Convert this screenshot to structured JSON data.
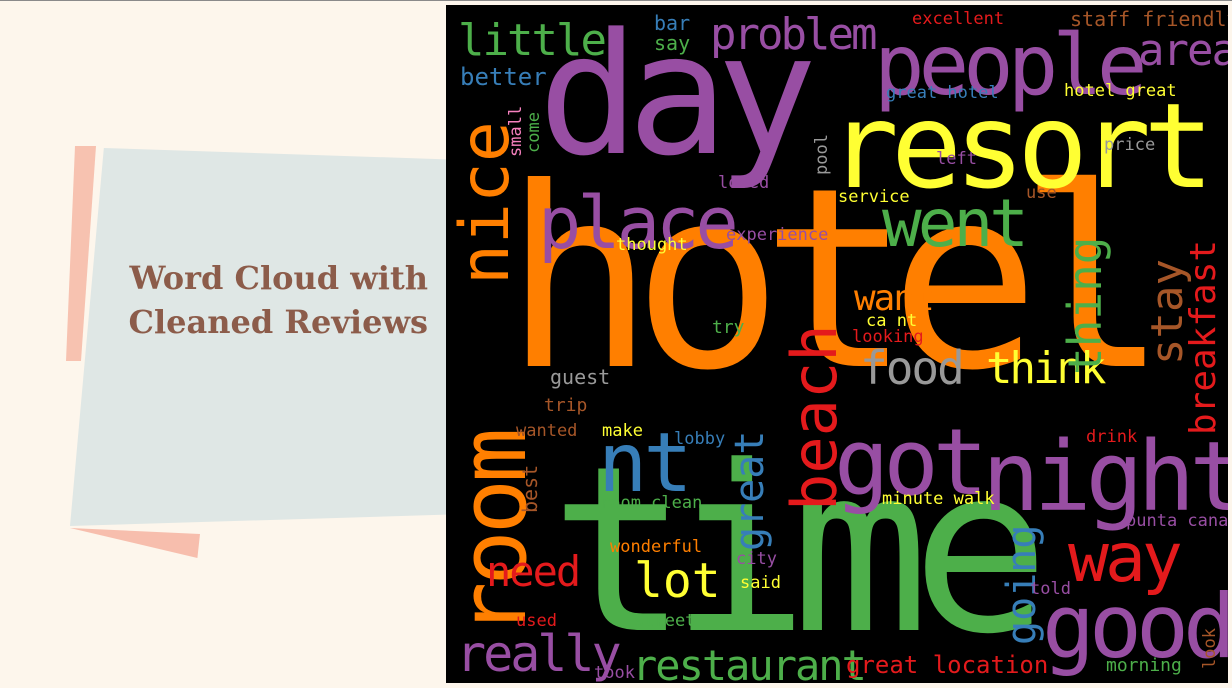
{
  "slide": {
    "title_line1": "Word Cloud with",
    "title_line2": "Cleaned Reviews"
  },
  "colors": {
    "orange": "#ff7f00",
    "purple": "#984ea3",
    "green": "#4daf4a",
    "yellow": "#ffff33",
    "red": "#e41a1c",
    "blue": "#377eb8",
    "brown": "#a65628",
    "pink": "#f781bf",
    "gray": "#999999"
  },
  "cloud": {
    "words": [
      "hotel",
      "time",
      "day",
      "resort",
      "room",
      "nice",
      "people",
      "place",
      "got",
      "night",
      "good",
      "beach",
      "went",
      "nt",
      "way",
      "food",
      "think",
      "lot",
      "need",
      "really",
      "restaurant",
      "thing",
      "stay",
      "breakfast",
      "want",
      "going",
      "great",
      "area",
      "little",
      "problem",
      "better",
      "bar",
      "say",
      "excellent",
      "staff friendly",
      "great hotel",
      "hotel great",
      "small",
      "come",
      "pool",
      "price",
      "left",
      "loved",
      "service",
      "use",
      "thought",
      "experience",
      "try",
      "ca nt",
      "looking",
      "guest",
      "trip",
      "wanted",
      "make",
      "lobby",
      "best",
      "drink",
      "minute walk",
      "room clean",
      "wonderful",
      "city",
      "said",
      "punta cana",
      "told",
      "used",
      "street",
      "took",
      "great location",
      "morning",
      "look"
    ]
  }
}
